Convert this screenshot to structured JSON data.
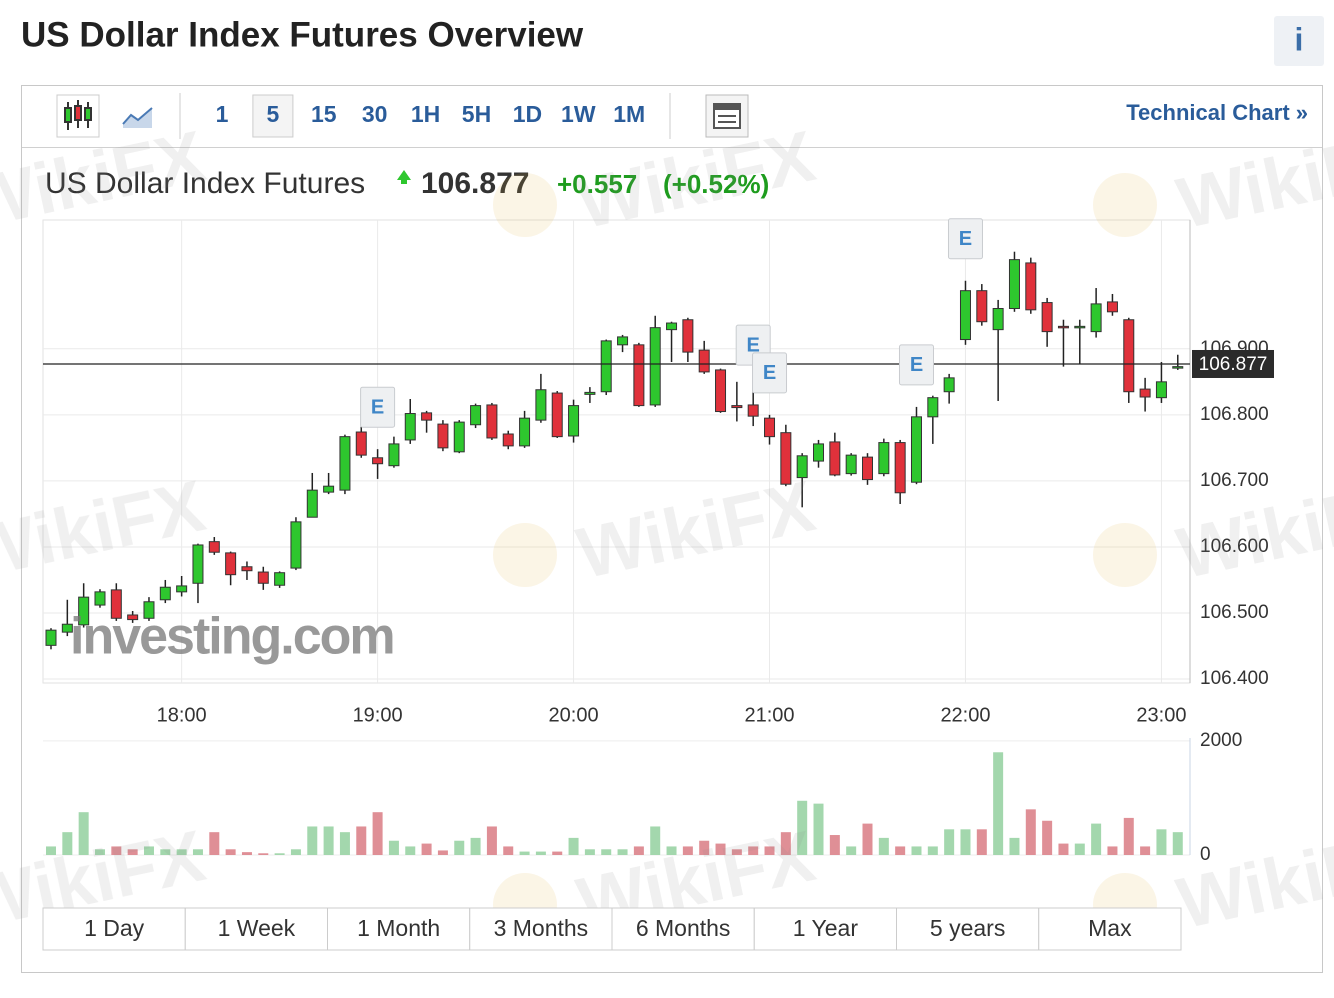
{
  "header": {
    "title": "US Dollar Index Futures Overview",
    "info": "i"
  },
  "toolbar": {
    "intervals": [
      "1",
      "5",
      "15",
      "30",
      "1H",
      "5H",
      "1D",
      "1W",
      "1M"
    ],
    "selected": "5",
    "link": "Technical Chart »"
  },
  "quote": {
    "name": "US Dollar Index Futures",
    "change": "+0.557",
    "change_percent": "(+0.52%)"
  },
  "chart_data": {
    "type": "candlestick",
    "x": [
      "17:20",
      "17:25",
      "17:30",
      "17:35",
      "17:40",
      "17:45",
      "17:50",
      "17:55",
      "18:00",
      "18:05",
      "18:10",
      "18:15",
      "18:20",
      "18:25",
      "18:30",
      "18:35",
      "18:40",
      "18:45",
      "18:50",
      "18:55",
      "19:00",
      "19:05",
      "19:10",
      "19:15",
      "19:20",
      "19:25",
      "19:30",
      "19:35",
      "19:40",
      "19:45",
      "19:50",
      "19:55",
      "20:00",
      "20:05",
      "20:10",
      "20:15",
      "20:20",
      "20:25",
      "20:30",
      "20:35",
      "20:40",
      "20:45",
      "20:50",
      "20:55",
      "21:00",
      "21:05",
      "21:10",
      "21:15",
      "21:20",
      "21:25",
      "21:30",
      "21:35",
      "21:40",
      "21:45",
      "21:50",
      "21:55",
      "22:00",
      "22:05",
      "22:10",
      "22:15",
      "22:20",
      "22:25",
      "22:30",
      "22:35",
      "22:40",
      "22:45",
      "22:50",
      "22:55",
      "23:00",
      "23:05"
    ],
    "open": [
      106.451,
      106.471,
      106.482,
      106.512,
      106.535,
      106.497,
      106.492,
      106.52,
      106.532,
      106.545,
      106.608,
      106.591,
      106.57,
      106.562,
      106.542,
      106.568,
      106.645,
      106.683,
      106.686,
      106.774,
      106.735,
      106.723,
      106.762,
      106.803,
      106.786,
      106.744,
      106.785,
      106.815,
      106.771,
      106.753,
      106.792,
      106.833,
      106.768,
      106.831,
      106.835,
      106.906,
      106.906,
      106.815,
      106.929,
      106.944,
      106.898,
      106.868,
      106.814,
      106.815,
      106.795,
      106.773,
      106.705,
      106.73,
      106.759,
      106.711,
      106.736,
      106.711,
      106.758,
      106.698,
      106.797,
      106.835,
      106.914,
      106.988,
      106.929,
      106.961,
      107.03,
      106.97,
      106.934,
      106.932,
      106.926,
      106.971,
      106.944,
      106.839,
      106.826,
      106.871
    ],
    "high": [
      106.477,
      106.52,
      106.545,
      106.536,
      106.545,
      106.503,
      106.524,
      106.55,
      106.556,
      106.605,
      106.615,
      106.593,
      106.578,
      106.57,
      106.563,
      106.645,
      106.712,
      106.712,
      106.77,
      106.797,
      106.748,
      106.767,
      106.824,
      106.806,
      106.792,
      106.792,
      106.817,
      106.818,
      106.776,
      106.806,
      106.862,
      106.836,
      106.823,
      106.842,
      106.914,
      106.921,
      106.909,
      106.95,
      106.941,
      106.947,
      106.912,
      106.87,
      106.85,
      106.842,
      106.8,
      106.785,
      106.742,
      106.762,
      106.773,
      106.742,
      106.742,
      106.764,
      106.762,
      106.812,
      106.829,
      106.862,
      107.003,
      106.998,
      106.974,
      107.047,
      107.038,
      106.977,
      106.944,
      106.944,
      106.992,
      106.983,
      106.947,
      106.856,
      106.88,
      106.891
    ],
    "low": [
      106.445,
      106.465,
      106.478,
      106.508,
      106.488,
      106.485,
      106.488,
      106.515,
      106.525,
      106.515,
      106.588,
      106.542,
      106.55,
      106.535,
      106.538,
      106.565,
      106.645,
      106.68,
      106.68,
      106.735,
      106.703,
      106.72,
      106.756,
      106.773,
      106.745,
      106.742,
      106.78,
      106.762,
      106.748,
      106.75,
      106.788,
      106.765,
      106.758,
      106.818,
      106.83,
      106.895,
      106.812,
      106.812,
      106.88,
      106.88,
      106.862,
      106.803,
      106.79,
      106.783,
      106.755,
      106.692,
      106.66,
      106.72,
      106.707,
      106.708,
      106.694,
      106.707,
      106.665,
      106.695,
      106.756,
      106.817,
      106.906,
      106.935,
      106.821,
      106.956,
      106.953,
      106.903,
      106.873,
      106.877,
      106.917,
      106.95,
      106.818,
      106.805,
      106.818,
      106.868
    ],
    "close": [
      106.474,
      106.483,
      106.524,
      106.532,
      106.492,
      106.49,
      106.517,
      106.539,
      106.541,
      106.603,
      106.592,
      106.558,
      106.564,
      106.545,
      106.561,
      106.638,
      106.686,
      106.692,
      106.767,
      106.739,
      106.726,
      106.756,
      106.802,
      106.792,
      106.75,
      106.789,
      106.814,
      106.765,
      106.753,
      106.795,
      106.838,
      106.767,
      106.814,
      106.834,
      106.912,
      106.918,
      106.814,
      106.932,
      106.939,
      106.895,
      106.865,
      106.805,
      106.811,
      106.798,
      106.767,
      106.695,
      106.738,
      106.756,
      106.709,
      106.739,
      106.702,
      106.758,
      106.682,
      106.797,
      106.826,
      106.856,
      106.988,
      106.941,
      106.961,
      107.035,
      106.959,
      106.926,
      106.932,
      106.934,
      106.968,
      106.956,
      106.835,
      106.827,
      106.85,
      106.873
    ],
    "up_color": "#2ec72e",
    "down_color": "#e0313b",
    "ylim": [
      106.394,
      107.095
    ],
    "yticks": [
      {
        "value": 106.4,
        "label": "106.400"
      },
      {
        "value": 106.5,
        "label": "106.500"
      },
      {
        "value": 106.6,
        "label": "106.600"
      },
      {
        "value": 106.7,
        "label": "106.700"
      },
      {
        "value": 106.8,
        "label": "106.800"
      },
      {
        "value": 106.9,
        "label": "106.900"
      }
    ],
    "xticks": [
      "18:00",
      "19:00",
      "20:00",
      "21:00",
      "22:00",
      "23:00"
    ],
    "grid": true,
    "last_price": 106.877,
    "events": [
      {
        "label": "E",
        "x": "19:00"
      },
      {
        "label": "E",
        "x": "20:55"
      },
      {
        "label": "E",
        "x": "21:00"
      },
      {
        "label": "E",
        "x": "21:45"
      },
      {
        "label": "E",
        "x": "22:00"
      }
    ],
    "volume": {
      "values": [
        150,
        400,
        750,
        100,
        150,
        100,
        150,
        100,
        100,
        100,
        400,
        100,
        50,
        30,
        30,
        100,
        500,
        500,
        400,
        500,
        750,
        250,
        150,
        200,
        80,
        250,
        300,
        500,
        150,
        60,
        60,
        60,
        300,
        100,
        100,
        100,
        150,
        500,
        150,
        150,
        250,
        200,
        100,
        150,
        150,
        400,
        950,
        900,
        350,
        150,
        550,
        300,
        150,
        150,
        150,
        450,
        450,
        450,
        1800,
        300,
        800,
        600,
        200,
        200,
        550,
        150,
        650,
        150,
        450,
        400
      ],
      "up_color": "#a3d7ad",
      "down_color": "#df8f96",
      "ylim": [
        0,
        2050
      ],
      "yticks": [
        0,
        2000
      ]
    }
  },
  "ranges": [
    "1 Day",
    "1 Week",
    "1 Month",
    "3 Months",
    "6 Months",
    "1 Year",
    "5 years",
    "Max"
  ],
  "watermark": "WikiFX",
  "logo": "investing.com"
}
